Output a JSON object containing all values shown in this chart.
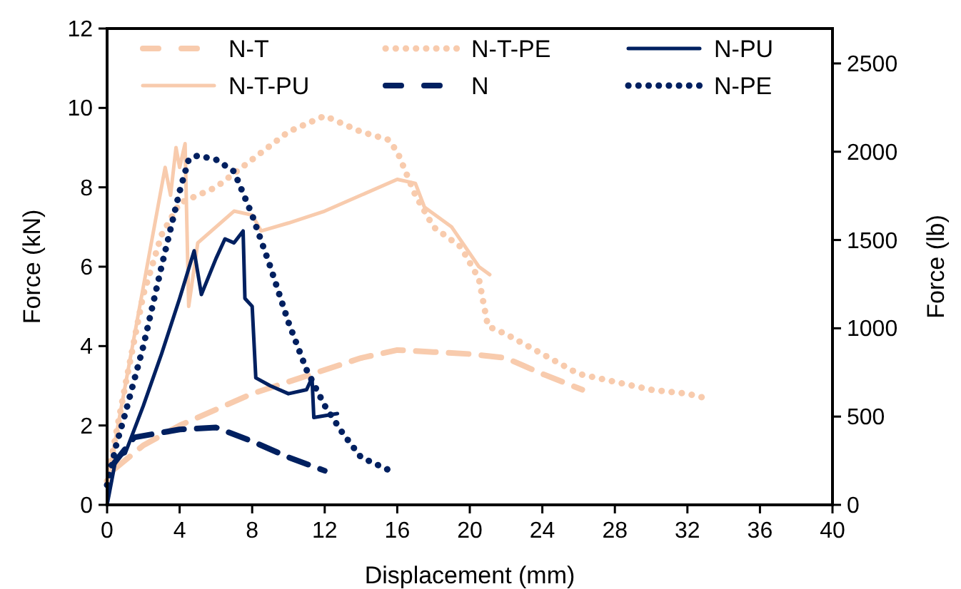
{
  "chart_data": {
    "type": "line",
    "xlabel": "Displacement (mm)",
    "ylabel": "Force (kN)",
    "y2label": "Force (lb)",
    "xlim": [
      0,
      40
    ],
    "xticks": [
      0,
      4,
      8,
      12,
      16,
      20,
      24,
      28,
      32,
      36,
      40
    ],
    "ylim": [
      0,
      12
    ],
    "yticks": [
      0,
      2,
      4,
      6,
      8,
      10,
      12
    ],
    "y2lim": [
      0,
      2697.7
    ],
    "y2ticks": [
      0,
      500,
      1000,
      1500,
      2000,
      2500
    ],
    "grid": false,
    "legend": "top",
    "marker": "none",
    "series": [
      {
        "name": "N-T",
        "color": "#f8cbad",
        "line_style": "dashed",
        "x": [
          0.4,
          2,
          4,
          6,
          8,
          10,
          12,
          14,
          16,
          18,
          20,
          22,
          24,
          26.2
        ],
        "values": [
          0.9,
          1.5,
          2.0,
          2.4,
          2.8,
          3.1,
          3.4,
          3.7,
          3.9,
          3.85,
          3.8,
          3.7,
          3.3,
          2.9
        ]
      },
      {
        "name": "N-T-PU",
        "color": "#f8cbad",
        "line_style": "solid",
        "x": [
          0,
          1,
          2,
          3,
          3.2,
          3.5,
          3.8,
          4,
          4.3,
          4.5,
          5,
          6,
          7,
          8,
          8.5,
          10,
          12,
          14,
          16,
          17,
          17.5,
          19,
          20.5,
          21.1
        ],
        "values": [
          0.5,
          3,
          5.5,
          8,
          8.5,
          7.8,
          9.0,
          8.5,
          9.1,
          5.0,
          6.6,
          7.0,
          7.4,
          7.3,
          6.9,
          7.1,
          7.4,
          7.8,
          8.2,
          8.1,
          7.5,
          7.0,
          6.0,
          5.8
        ]
      },
      {
        "name": "N-T-PE",
        "color": "#f8cbad",
        "line_style": "dotted",
        "x": [
          0,
          1,
          2,
          3,
          4,
          5,
          6,
          8,
          10,
          12,
          13,
          14,
          15.5,
          16,
          17,
          18,
          19.5,
          20.5,
          21,
          22,
          24,
          26,
          28,
          30,
          32,
          32.9
        ],
        "values": [
          0.6,
          3,
          5.3,
          6.8,
          7.6,
          7.8,
          8.0,
          8.7,
          9.4,
          9.8,
          9.6,
          9.4,
          9.2,
          8.9,
          7.8,
          7.0,
          6.5,
          5.7,
          4.5,
          4.3,
          3.8,
          3.3,
          3.1,
          2.9,
          2.8,
          2.7
        ]
      },
      {
        "name": "N",
        "color": "#002060",
        "line_style": "dashed",
        "x": [
          0.3,
          1.5,
          4,
          6,
          8,
          10,
          12
        ],
        "values": [
          1.0,
          1.7,
          1.9,
          1.95,
          1.6,
          1.2,
          0.86
        ]
      },
      {
        "name": "N-PU",
        "color": "#002060",
        "line_style": "solid",
        "x": [
          0,
          0.5,
          1,
          2,
          3,
          4,
          4.8,
          5.2,
          6,
          6.5,
          7,
          7.5,
          7.6,
          8,
          8.2,
          9,
          10,
          11,
          11.3,
          11.4,
          12.7
        ],
        "values": [
          0,
          1.2,
          1.3,
          2.5,
          3.8,
          5.2,
          6.4,
          5.3,
          6.2,
          6.7,
          6.6,
          6.9,
          5.2,
          5.0,
          3.2,
          3.0,
          2.8,
          2.9,
          3.2,
          2.2,
          2.3
        ]
      },
      {
        "name": "N-PE",
        "color": "#002060",
        "line_style": "dotted",
        "x": [
          0,
          0.5,
          1,
          2,
          3,
          4,
          4.5,
          5,
          6,
          7,
          8,
          9,
          10,
          11,
          12,
          13,
          14,
          15.9
        ],
        "values": [
          0.5,
          1.5,
          2.3,
          4,
          6,
          7.9,
          8.7,
          8.8,
          8.7,
          8.4,
          7.3,
          6.0,
          4.6,
          3.4,
          2.5,
          1.8,
          1.2,
          0.8
        ]
      }
    ]
  }
}
